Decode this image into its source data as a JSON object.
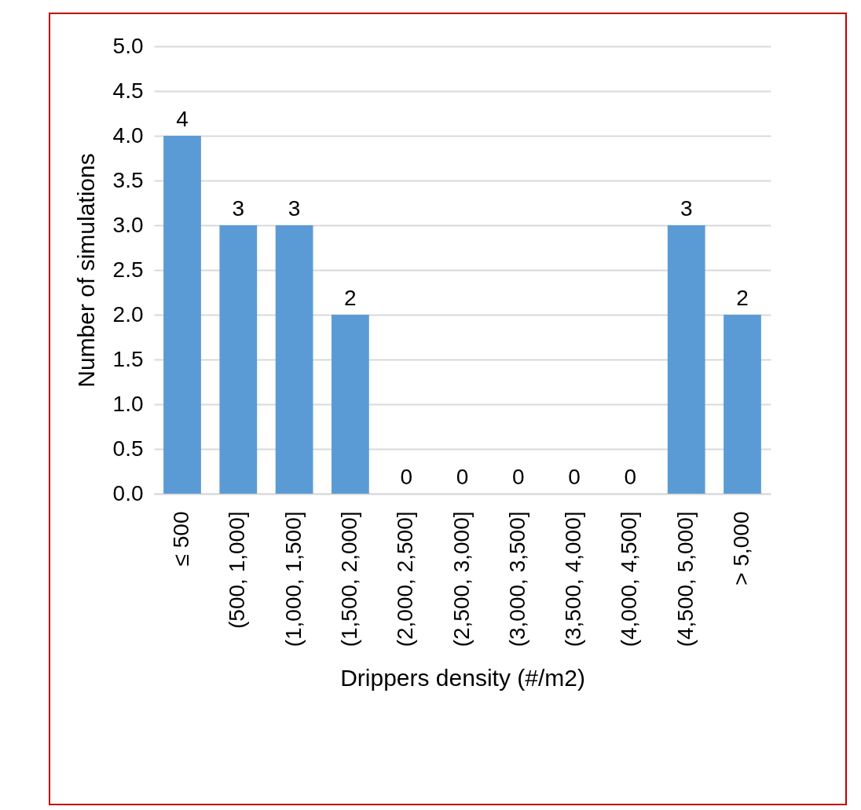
{
  "chart_data": {
    "type": "bar",
    "xlabel": "Drippers density (#/m2)",
    "ylabel": "Number of simulations",
    "categories": [
      "≤ 500",
      "(500, 1,000]",
      "(1,000, 1,500]",
      "(1,500, 2,000]",
      "(2,000, 2,500]",
      "(2,500, 3,000]",
      "(3,000, 3,500]",
      "(3,500, 4,000]",
      "(4,000, 4,500]",
      "(4,500, 5,000]",
      "> 5,000"
    ],
    "values": [
      4,
      3,
      3,
      2,
      0,
      0,
      0,
      0,
      0,
      3,
      2
    ],
    "color": "#5b9bd5",
    "ylim": [
      0,
      5
    ],
    "yticks": [
      {
        "value": 0,
        "label": "0.0"
      },
      {
        "value": 0.5,
        "label": "0.5"
      },
      {
        "value": 1,
        "label": "1.0"
      },
      {
        "value": 1.5,
        "label": "1.5"
      },
      {
        "value": 2,
        "label": "2.0"
      },
      {
        "value": 2.5,
        "label": "2.5"
      },
      {
        "value": 3,
        "label": "3.0"
      },
      {
        "value": 3.5,
        "label": "3.5"
      },
      {
        "value": 4,
        "label": "4.0"
      },
      {
        "value": 4.5,
        "label": "4.5"
      },
      {
        "value": 5,
        "label": "5.0"
      }
    ],
    "grid": "y",
    "data_labels": true
  }
}
